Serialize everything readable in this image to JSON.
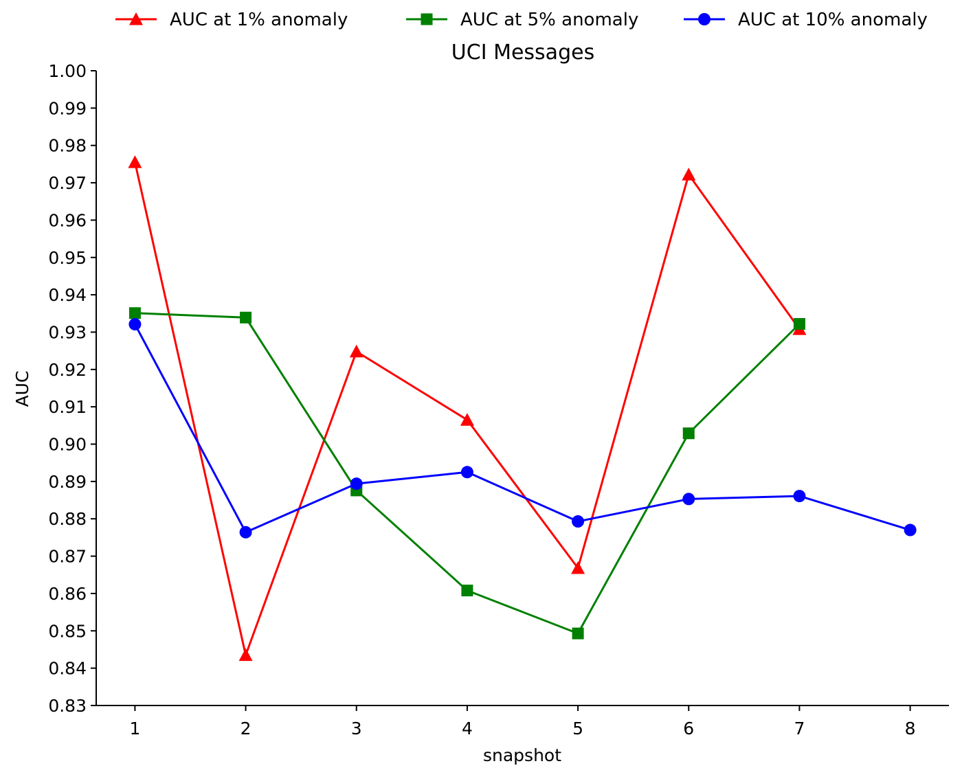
{
  "chart_data": {
    "type": "line",
    "title": "UCI Messages",
    "xlabel": "snapshot",
    "ylabel": "AUC",
    "x_ticks": [
      "1",
      "2",
      "3",
      "4",
      "5",
      "6",
      "7",
      "8"
    ],
    "y_ticks": [
      "0.83",
      "0.84",
      "0.85",
      "0.86",
      "0.87",
      "0.88",
      "0.89",
      "0.90",
      "0.91",
      "0.92",
      "0.93",
      "0.94",
      "0.95",
      "0.96",
      "0.97",
      "0.98",
      "0.99",
      "1.00"
    ],
    "xlim": [
      0.65,
      8.35
    ],
    "ylim": [
      0.83,
      1.0
    ],
    "grid": false,
    "legend_position": "top",
    "series": [
      {
        "name": "AUC at 1% anomaly",
        "color": "#ff0000",
        "marker": "triangle",
        "x": [
          1,
          2,
          3,
          4,
          5,
          6,
          7
        ],
        "values": [
          0.9755,
          0.8435,
          0.9248,
          0.9065,
          0.8668,
          0.9722,
          0.9308
        ]
      },
      {
        "name": "AUC at 5% anomaly",
        "color": "#008000",
        "marker": "square",
        "x": [
          1,
          2,
          3,
          4,
          5,
          6,
          7
        ],
        "values": [
          0.9351,
          0.9339,
          0.8876,
          0.8608,
          0.8493,
          0.9029,
          0.9322
        ]
      },
      {
        "name": "AUC at 10% anomaly",
        "color": "#0000ff",
        "marker": "circle",
        "x": [
          1,
          2,
          3,
          4,
          5,
          6,
          7,
          8
        ],
        "values": [
          0.9321,
          0.8764,
          0.8894,
          0.8925,
          0.8793,
          0.8853,
          0.8861,
          0.877
        ]
      }
    ]
  }
}
